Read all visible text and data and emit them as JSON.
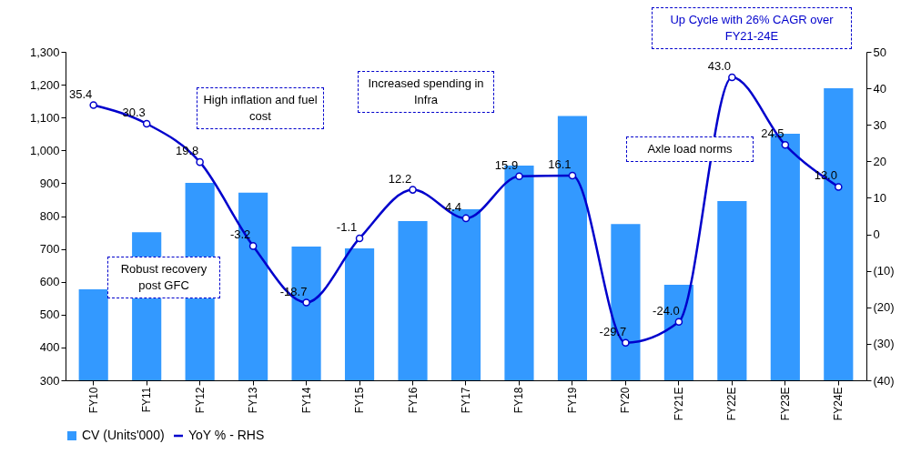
{
  "chart_data": {
    "type": "bar",
    "categories": [
      "FY10",
      "FY11",
      "FY12",
      "FY13",
      "FY14",
      "FY15",
      "FY16",
      "FY17",
      "FY18",
      "FY19",
      "FY20",
      "FY21E",
      "FY22E",
      "FY23E",
      "FY24E"
    ],
    "series": [
      {
        "name": "CV (Units'000)",
        "color": "#3399ff",
        "values": [
          577,
          751,
          901,
          871,
          707,
          702,
          785,
          821,
          954,
          1105,
          776,
          591,
          846,
          1051,
          1189
        ]
      },
      {
        "name": "YoY % - RHS",
        "type": "line",
        "axis": "y2",
        "color": "#0000cc",
        "marker": "circle",
        "values": [
          35.4,
          30.3,
          19.8,
          -3.2,
          -18.7,
          -1.1,
          12.2,
          4.4,
          15.9,
          16.1,
          -29.7,
          -24.0,
          43.0,
          24.5,
          13.0
        ],
        "value_labels": [
          "35.4",
          "30.3",
          "19.8",
          "-3.2",
          "-18.7",
          "-1.1",
          "12.2",
          "4.4",
          "15.9",
          "16.1",
          "-29.7",
          "-24.0",
          "43.0",
          "24.5",
          "13.0"
        ]
      }
    ],
    "ylim": [
      300,
      1300
    ],
    "yticks": [
      300,
      400,
      500,
      600,
      700,
      800,
      900,
      {
        "value": 1000,
        "label": "1,000"
      },
      {
        "value": 1100,
        "label": "1,100"
      },
      {
        "value": 1200,
        "label": "1,200"
      },
      {
        "value": 1300,
        "label": "1,300"
      }
    ],
    "y2lim": [
      -40,
      50
    ],
    "y2ticks": [
      {
        "value": -40,
        "label": "(40)"
      },
      {
        "value": -30,
        "label": "(30)"
      },
      {
        "value": -20,
        "label": "(20)"
      },
      {
        "value": -10,
        "label": "(10)"
      },
      0,
      10,
      20,
      30,
      40,
      50
    ],
    "annotations": [
      "Up Cycle with 26% CAGR over FY21-24E",
      "High inflation and fuel cost",
      "Increased spending in Infra",
      "Axle load norms",
      "Robust recovery post GFC"
    ],
    "legend": "bottom",
    "grid": false
  }
}
